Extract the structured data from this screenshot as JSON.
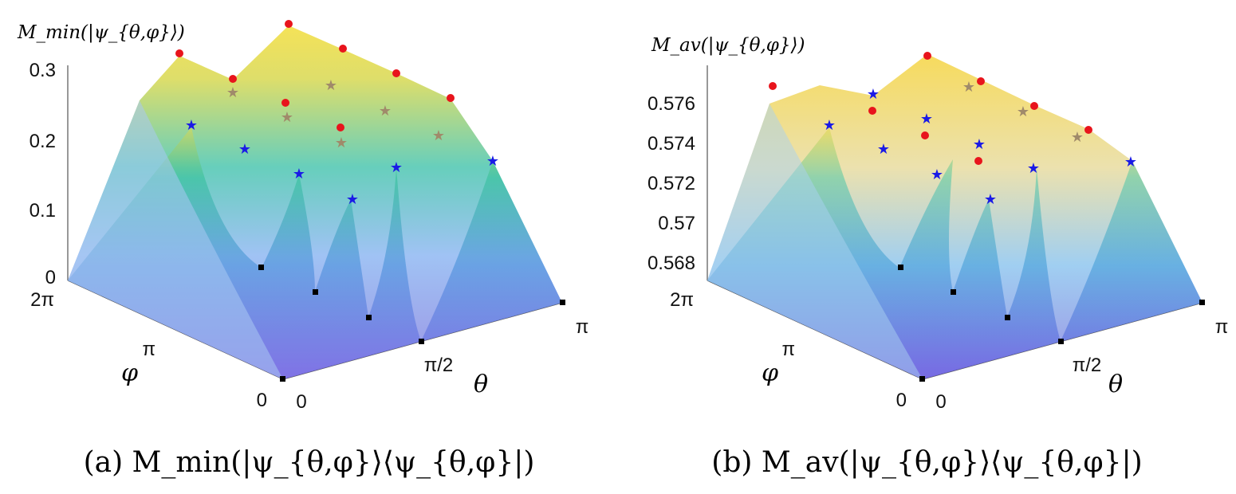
{
  "figure": {
    "captions": [
      "(a) M_min(|ψ_{θ,φ}⟩⟨ψ_{θ,φ}|)",
      "(b) M_av(|ψ_{θ,φ}⟩⟨ψ_{θ,φ}|)"
    ]
  },
  "chart_data": [
    {
      "type": "surface",
      "panel": "(a)",
      "zlabel": "M_min(|ψ_{θ,φ}⟩)",
      "xlabel": "θ",
      "ylabel": "φ",
      "x_ticks": [
        "0",
        "π/2",
        "π"
      ],
      "y_ticks": [
        "0",
        "π",
        "2π"
      ],
      "z_ticks": [
        "0",
        "0.1",
        "0.2",
        "0.3"
      ],
      "zlim": [
        0,
        0.3
      ],
      "markers": {
        "red_dots_max": [
          0.31,
          0.29,
          0.33,
          0.31,
          0.28,
          0.26,
          0.24,
          0.22
        ],
        "stars": [
          0.22,
          0.19,
          0.15,
          0.11,
          0.16,
          0.17
        ],
        "black_squares_min": [
          0,
          0,
          0,
          0,
          0,
          0,
          0
        ]
      },
      "colormap": "parula (purple → blue → green → yellow)"
    },
    {
      "type": "surface",
      "panel": "(b)",
      "zlabel": "M_av(|ψ_{θ,φ}⟩)",
      "xlabel": "θ",
      "ylabel": "φ",
      "x_ticks": [
        "0",
        "π/2",
        "π"
      ],
      "y_ticks": [
        "0",
        "π",
        "2π"
      ],
      "z_ticks": [
        "0.568",
        "0.57",
        "0.572",
        "0.574",
        "0.576"
      ],
      "zlim": [
        0.5673,
        0.5779
      ],
      "markers": {
        "red_dots_max": [
          0.5774,
          0.5776,
          0.577,
          0.5772,
          0.5769,
          0.5765,
          0.5763
        ],
        "stars": [
          0.5757,
          0.5747,
          0.5748,
          0.574,
          0.5733,
          0.5751,
          0.5742
        ],
        "black_squares_min": [
          0.5673,
          0.5673,
          0.5673,
          0.5673,
          0.5673,
          0.5673
        ]
      },
      "colormap": "parula (purple → blue → green → yellow)"
    }
  ]
}
